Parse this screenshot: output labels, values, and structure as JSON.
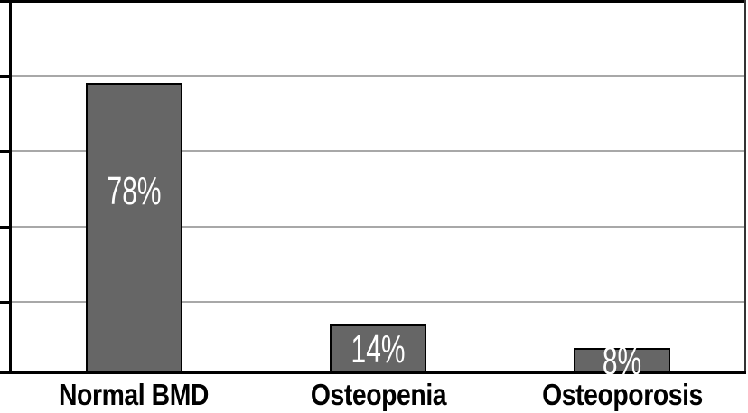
{
  "chart_data": {
    "type": "bar",
    "title": "",
    "xlabel": "",
    "ylabel": "",
    "categories": [
      "Normal BMD",
      "Osteopenia",
      "Osteoporosis"
    ],
    "values": [
      78,
      14,
      8
    ],
    "bar_labels": [
      "78%",
      "14%",
      "8%"
    ],
    "ylim": [
      0,
      100
    ],
    "ytick_interval": 20,
    "gridline_values": [
      20,
      40,
      60,
      80
    ],
    "grid": "horizontal",
    "legend": false,
    "bar_label_position": "inside",
    "axis_tick_labels_visible": false
  },
  "style": {
    "background": "#ffffff",
    "bar_fill": "#666666",
    "bar_border": "#000000",
    "axis_color": "#000000",
    "gridline_color": "#a8a8a8",
    "right_border_color": "#333333",
    "bar_label_color": "#ffffff",
    "category_label_color": "#000000"
  }
}
